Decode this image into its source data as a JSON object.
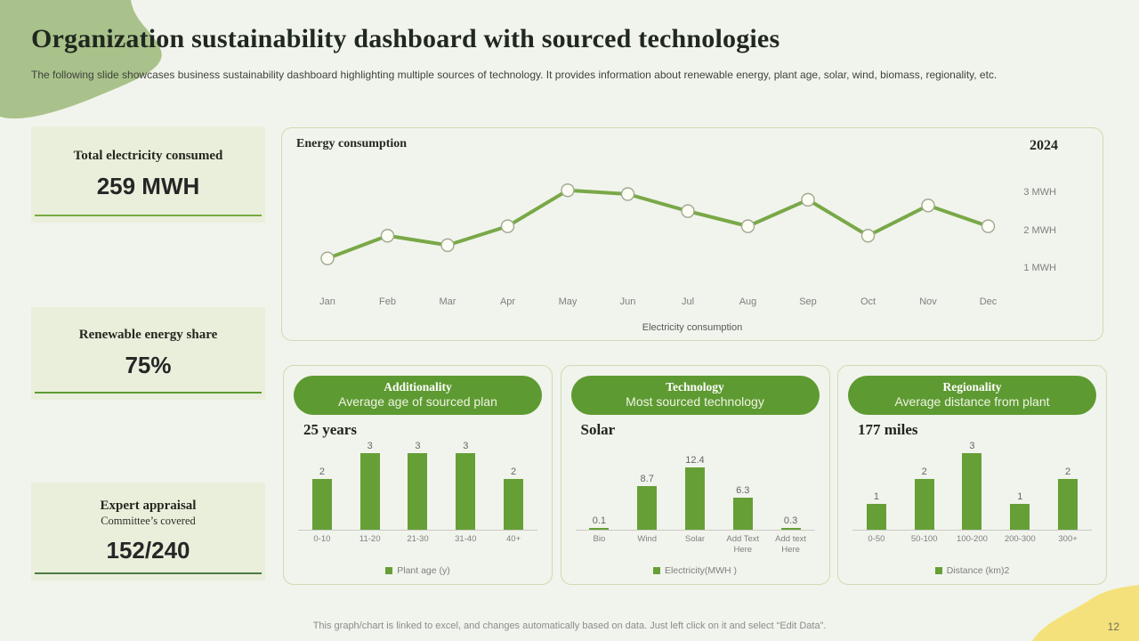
{
  "header": {
    "title": "Organization sustainability dashboard with sourced technologies",
    "subtitle": "The following slide showcases business sustainability dashboard highlighting multiple sources of technology. It provides information about renewable energy, plant age, solar, wind, biomass, regionality, etc."
  },
  "kpis": [
    {
      "title": "Total electricity consumed",
      "value": "259 MWH"
    },
    {
      "title": "Renewable energy share",
      "value": "75%"
    },
    {
      "title": "Expert appraisal",
      "subtitle": "Committee’s covered",
      "value": "152/240"
    }
  ],
  "chart_data": [
    {
      "type": "line",
      "title": "Energy consumption",
      "year_label": "2024",
      "x": [
        "Jan",
        "Feb",
        "Mar",
        "Apr",
        "May",
        "Jun",
        "Jul",
        "Aug",
        "Sep",
        "Oct",
        "Nov",
        "Dec"
      ],
      "values": [
        1.3,
        1.9,
        1.65,
        2.15,
        3.1,
        3.0,
        2.55,
        2.15,
        2.85,
        1.9,
        2.7,
        2.15
      ],
      "y_ticks": [
        "3 MWH",
        "2 MWH",
        "1 MWH"
      ],
      "ylim": [
        0.5,
        3.5
      ],
      "xlabel": "Electricity consumption",
      "legend_position": "none",
      "grid": false
    },
    {
      "type": "bar",
      "panel_title": "Additionality",
      "panel_subtitle": "Average age of sourced plan",
      "stat": "25 years",
      "categories": [
        "0-10",
        "11-20",
        "21-30",
        "31-40",
        "40+"
      ],
      "values": [
        2,
        3,
        3,
        3,
        2
      ],
      "legend": "Plant age (y)",
      "ylim": [
        0,
        3.5
      ]
    },
    {
      "type": "bar",
      "panel_title": "Technology",
      "panel_subtitle": "Most sourced technology",
      "stat": "Solar",
      "categories": [
        "Bio",
        "Wind",
        "Solar",
        "Add Text Here",
        "Add text Here"
      ],
      "values": [
        0.1,
        8.7,
        12.4,
        6.3,
        0.3
      ],
      "legend": "Electricity(MWH )",
      "ylim": [
        0,
        14
      ]
    },
    {
      "type": "bar",
      "panel_title": "Regionality",
      "panel_subtitle": "Average distance from plant",
      "stat": "177 miles",
      "categories": [
        "0-50",
        "50-100",
        "100-200",
        "200-300",
        "300+"
      ],
      "values": [
        1,
        2,
        3,
        1,
        2
      ],
      "legend": "Distance (km)2",
      "ylim": [
        0,
        3.5
      ]
    }
  ],
  "footer": {
    "note": "This graph/chart is linked to excel, and changes automatically based on data. Just left click on it and select “Edit Data”.",
    "page_number": "12"
  },
  "colors": {
    "accent_green": "#5e9a32",
    "bar_green": "#669f36",
    "line_green": "#79a848",
    "marker_fill": "#fbfdf3",
    "marker_stroke": "#a2a892",
    "kpi_underlines": [
      "#76a93e",
      "#5d9a33",
      "#4b7a41"
    ],
    "blob_green": "#a9c28b",
    "blob_yellow": "#f5e17c",
    "panel_border": "#ccdcb4",
    "kpi_bg": "#eaefdc",
    "page_bg": "#f1f4ec"
  }
}
